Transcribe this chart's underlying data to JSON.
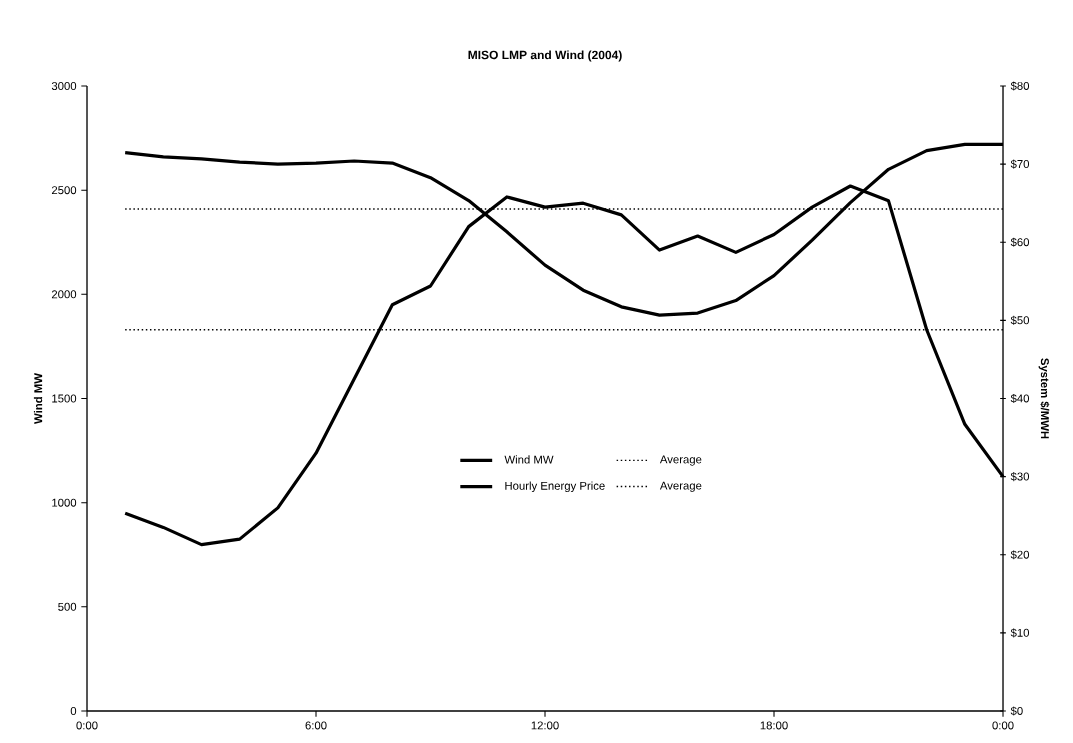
{
  "chart_data": {
    "type": "line",
    "title": "MISO LMP and Wind (2004)",
    "ylabel": "Wind MW",
    "y2label": "System $/MWH",
    "x": [
      1,
      2,
      3,
      4,
      5,
      6,
      7,
      8,
      9,
      10,
      11,
      12,
      13,
      14,
      15,
      16,
      17,
      18,
      19,
      20,
      21,
      22,
      23,
      24
    ],
    "series": [
      {
        "name": "Wind MW",
        "color": "#000000",
        "line_style": "solid",
        "values": [
          2680,
          2660,
          2650,
          2635,
          2625,
          2630,
          2640,
          2630,
          2560,
          2450,
          2300,
          2140,
          2020,
          1940,
          1900,
          1910,
          1970,
          2090,
          2260,
          2440,
          2600,
          2690,
          2720,
          2720
        ]
      },
      {
        "name": "Hourly Energy Price",
        "color": "#000000",
        "line_style": "solid",
        "axis": "y2",
        "values": [
          25.3,
          23.5,
          21.3,
          22.0,
          26.0,
          33.0,
          42.5,
          52.0,
          54.4,
          62.0,
          65.8,
          64.5,
          65.0,
          63.5,
          59.0,
          60.8,
          58.7,
          61.0,
          64.5,
          67.2,
          65.3,
          48.8,
          36.7,
          30.0
        ]
      }
    ],
    "ref_lines": [
      {
        "axis": "y",
        "value": 2410,
        "label": "Average",
        "color": "#000000",
        "line_style": "dotted"
      },
      {
        "axis": "y2",
        "value": 48.8,
        "label": "Average",
        "color": "#000000",
        "line_style": "dotted"
      }
    ],
    "xlim": [
      0,
      24
    ],
    "xticks": [
      {
        "value": 0,
        "label": "0:00"
      },
      {
        "value": 6,
        "label": "6:00"
      },
      {
        "value": 12,
        "label": "12:00"
      },
      {
        "value": 18,
        "label": "18:00"
      },
      {
        "value": 24,
        "label": "0:00"
      }
    ],
    "ylim": [
      0,
      3000
    ],
    "yticks": [
      0,
      500,
      1000,
      1500,
      2000,
      2500,
      3000
    ],
    "y2lim": [
      0,
      80
    ],
    "y2ticks": [
      {
        "value": 0,
        "label": "$0"
      },
      {
        "value": 10,
        "label": "$10"
      },
      {
        "value": 20,
        "label": "$20"
      },
      {
        "value": 30,
        "label": "$30"
      },
      {
        "value": 40,
        "label": "$40"
      },
      {
        "value": 50,
        "label": "$50"
      },
      {
        "value": 60,
        "label": "$60"
      },
      {
        "value": 70,
        "label": "$70"
      },
      {
        "value": 80,
        "label": "$80"
      }
    ],
    "grid": false,
    "legend": "center"
  }
}
